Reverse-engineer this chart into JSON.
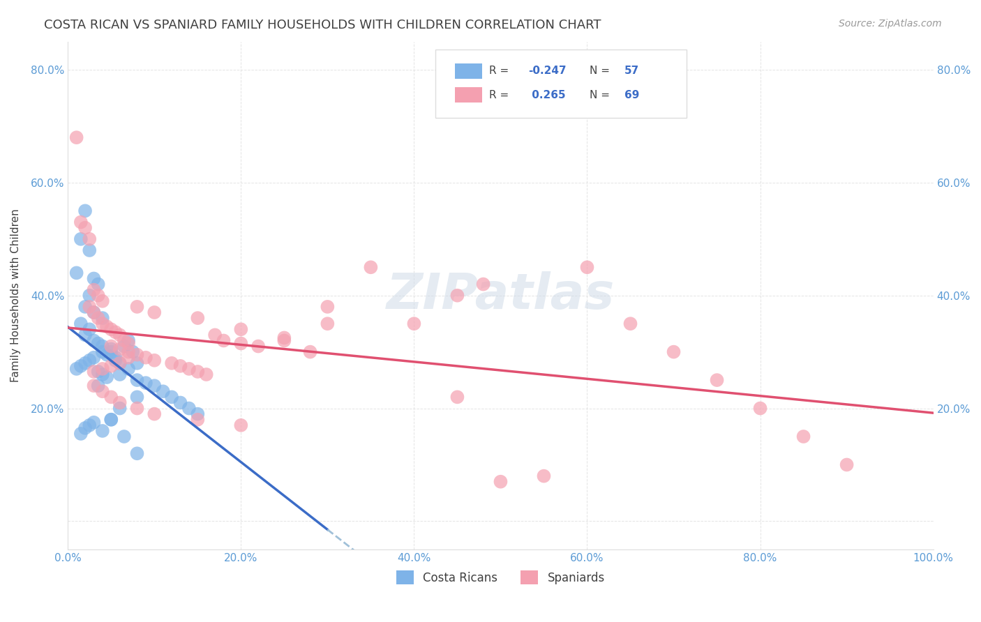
{
  "title": "COSTA RICAN VS SPANIARD FAMILY HOUSEHOLDS WITH CHILDREN CORRELATION CHART",
  "source": "Source: ZipAtlas.com",
  "ylabel": "Family Households with Children",
  "xlim": [
    0.0,
    1.0
  ],
  "ylim": [
    -0.05,
    0.85
  ],
  "xticks": [
    0.0,
    0.2,
    0.4,
    0.6,
    0.8,
    1.0
  ],
  "yticks": [
    0.0,
    0.2,
    0.4,
    0.6,
    0.8
  ],
  "xtick_labels": [
    "0.0%",
    "20.0%",
    "40.0%",
    "60.0%",
    "80.0%",
    "100.0%"
  ],
  "right_ytick_labels": [
    "80.0%",
    "60.0%",
    "40.0%",
    "20.0%"
  ],
  "right_ytick_positions": [
    0.8,
    0.6,
    0.4,
    0.2
  ],
  "blue_color": "#7EB3E8",
  "pink_color": "#F4A0B0",
  "blue_line_color": "#3B6CC7",
  "pink_line_color": "#E05070",
  "dashed_line_color": "#A0C0D8",
  "grid_color": "#DDDDDD",
  "title_color": "#404040",
  "axis_label_color": "#404040",
  "tick_color": "#5B9BD5",
  "watermark_color": "#D0DCE8",
  "costa_rican_x": [
    0.02,
    0.015,
    0.025,
    0.01,
    0.03,
    0.035,
    0.025,
    0.02,
    0.03,
    0.04,
    0.015,
    0.025,
    0.02,
    0.03,
    0.035,
    0.04,
    0.05,
    0.04,
    0.045,
    0.03,
    0.025,
    0.02,
    0.015,
    0.01,
    0.035,
    0.04,
    0.045,
    0.05,
    0.055,
    0.06,
    0.055,
    0.065,
    0.07,
    0.075,
    0.08,
    0.07,
    0.06,
    0.08,
    0.09,
    0.1,
    0.11,
    0.12,
    0.13,
    0.14,
    0.15,
    0.08,
    0.06,
    0.05,
    0.04,
    0.03,
    0.025,
    0.02,
    0.015,
    0.035,
    0.05,
    0.065,
    0.08
  ],
  "costa_rican_y": [
    0.55,
    0.5,
    0.48,
    0.44,
    0.43,
    0.42,
    0.4,
    0.38,
    0.37,
    0.36,
    0.35,
    0.34,
    0.33,
    0.32,
    0.315,
    0.31,
    0.305,
    0.3,
    0.295,
    0.29,
    0.285,
    0.28,
    0.275,
    0.27,
    0.265,
    0.26,
    0.255,
    0.3,
    0.285,
    0.28,
    0.29,
    0.31,
    0.32,
    0.3,
    0.28,
    0.27,
    0.26,
    0.25,
    0.245,
    0.24,
    0.23,
    0.22,
    0.21,
    0.2,
    0.19,
    0.22,
    0.2,
    0.18,
    0.16,
    0.175,
    0.17,
    0.165,
    0.155,
    0.24,
    0.18,
    0.15,
    0.12
  ],
  "spaniard_x": [
    0.01,
    0.015,
    0.02,
    0.025,
    0.03,
    0.035,
    0.04,
    0.025,
    0.03,
    0.035,
    0.04,
    0.045,
    0.05,
    0.055,
    0.06,
    0.065,
    0.07,
    0.05,
    0.06,
    0.07,
    0.08,
    0.09,
    0.1,
    0.12,
    0.13,
    0.14,
    0.15,
    0.16,
    0.17,
    0.18,
    0.2,
    0.22,
    0.25,
    0.28,
    0.3,
    0.25,
    0.2,
    0.15,
    0.1,
    0.08,
    0.07,
    0.06,
    0.05,
    0.04,
    0.03,
    0.03,
    0.04,
    0.05,
    0.06,
    0.08,
    0.1,
    0.15,
    0.2,
    0.5,
    0.55,
    0.6,
    0.65,
    0.7,
    0.75,
    0.8,
    0.85,
    0.9,
    0.4,
    0.45,
    0.35,
    0.3,
    0.48,
    0.45
  ],
  "spaniard_y": [
    0.68,
    0.53,
    0.52,
    0.5,
    0.41,
    0.4,
    0.39,
    0.38,
    0.37,
    0.36,
    0.35,
    0.345,
    0.34,
    0.335,
    0.33,
    0.32,
    0.315,
    0.31,
    0.305,
    0.3,
    0.295,
    0.29,
    0.285,
    0.28,
    0.275,
    0.27,
    0.265,
    0.26,
    0.33,
    0.32,
    0.315,
    0.31,
    0.325,
    0.3,
    0.35,
    0.32,
    0.34,
    0.36,
    0.37,
    0.38,
    0.29,
    0.28,
    0.275,
    0.27,
    0.265,
    0.24,
    0.23,
    0.22,
    0.21,
    0.2,
    0.19,
    0.18,
    0.17,
    0.07,
    0.08,
    0.45,
    0.35,
    0.3,
    0.25,
    0.2,
    0.15,
    0.1,
    0.35,
    0.4,
    0.45,
    0.38,
    0.42,
    0.22
  ]
}
